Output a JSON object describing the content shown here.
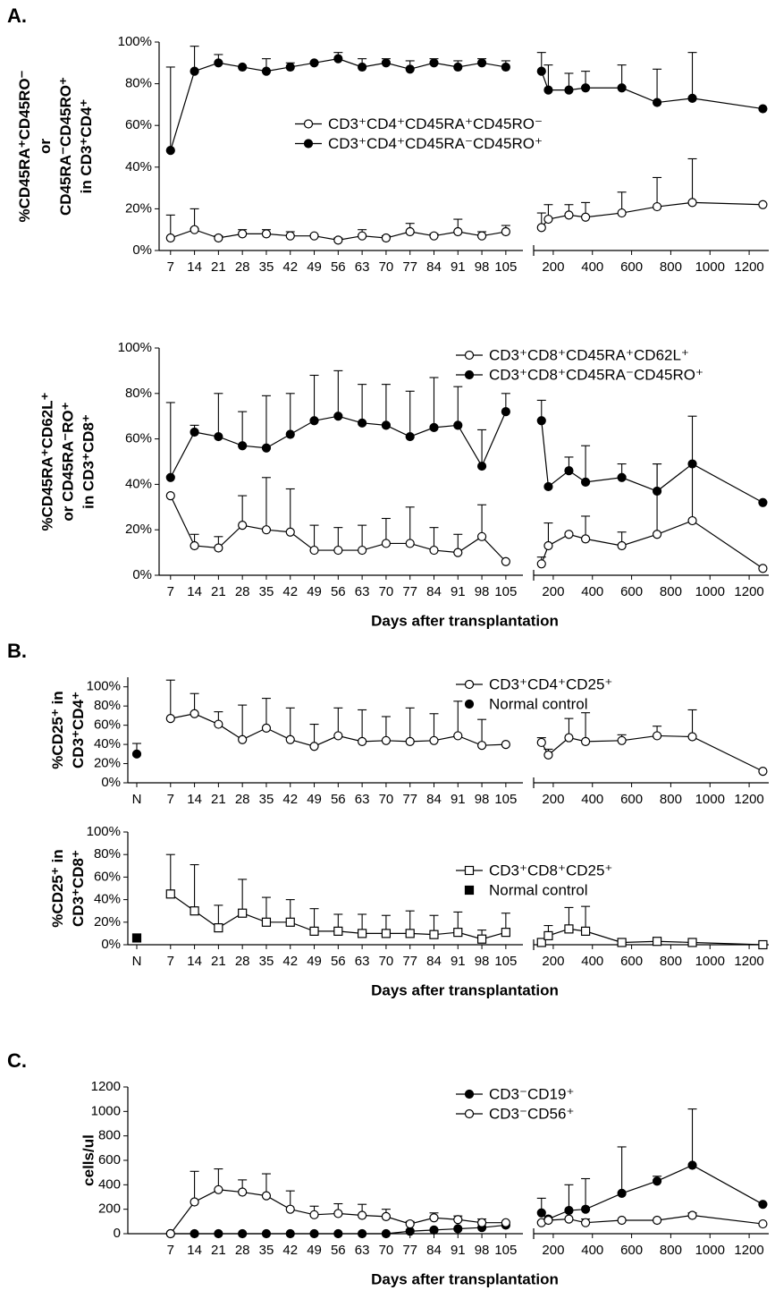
{
  "chart_data": [
    {
      "type": "line",
      "panel_label": "A.",
      "color": "#000000",
      "ylabel": [
        "%CD45RA⁺CD45RO⁻",
        "or",
        "CD45RA⁻CD45RO⁺",
        "in CD3⁺CD4⁺"
      ],
      "legend": "center",
      "x": [
        7,
        14,
        21,
        28,
        35,
        42,
        49,
        56,
        63,
        70,
        77,
        84,
        91,
        98,
        105
      ],
      "xlim": [
        0,
        110
      ],
      "xticks": [
        7,
        14,
        21,
        28,
        35,
        42,
        49,
        56,
        63,
        70,
        77,
        84,
        91,
        98,
        105
      ],
      "x2": [
        140,
        175,
        280,
        365,
        550,
        730,
        910,
        1270
      ],
      "x2lim": [
        100,
        1300
      ],
      "x2ticks": [
        200,
        400,
        600,
        800,
        1000,
        1200
      ],
      "ylim": [
        0,
        100
      ],
      "yticks": [
        {
          "value": 0,
          "label": "0%"
        },
        {
          "value": 20,
          "label": "20%"
        },
        {
          "value": 40,
          "label": "40%"
        },
        {
          "value": 60,
          "label": "60%"
        },
        {
          "value": 80,
          "label": "80%"
        },
        {
          "value": 100,
          "label": "100%"
        }
      ],
      "series": [
        {
          "name": "CD3⁺CD4⁺CD45RA⁺CD45RO⁻",
          "marker": "open-circle",
          "values": [
            6,
            10,
            6,
            8,
            8,
            7,
            7,
            5,
            7,
            6,
            9,
            7,
            9,
            7,
            9
          ],
          "errors": [
            11,
            10,
            1,
            2,
            2,
            2,
            0,
            1,
            3,
            1,
            4,
            1,
            6,
            2,
            3
          ],
          "values2": [
            11,
            15,
            17,
            16,
            18,
            21,
            23,
            22
          ],
          "errors2": [
            7,
            7,
            5,
            7,
            10,
            14,
            21,
            null
          ]
        },
        {
          "name": "CD3⁺CD4⁺CD45RA⁻CD45RO⁺",
          "marker": "filled-circle",
          "values": [
            48,
            86,
            90,
            88,
            86,
            88,
            90,
            92,
            88,
            90,
            87,
            90,
            88,
            90,
            88
          ],
          "errors": [
            40,
            12,
            4,
            0,
            6,
            2,
            0,
            3,
            4,
            2,
            4,
            2,
            3,
            2,
            3
          ],
          "values2": [
            86,
            77,
            77,
            78,
            78,
            71,
            73,
            68
          ],
          "errors2": [
            9,
            12,
            8,
            8,
            11,
            16,
            22,
            null
          ]
        }
      ]
    },
    {
      "type": "line",
      "color": "#000000",
      "ylabel": [
        "%CD45RA⁺CD62L⁺",
        "or CD45RA⁻RO⁺",
        "in CD3⁺CD8⁺"
      ],
      "xlabel": "Days after transplantation",
      "legend": "upper right",
      "x": [
        7,
        14,
        21,
        28,
        35,
        42,
        49,
        56,
        63,
        70,
        77,
        84,
        91,
        98,
        105
      ],
      "xlim": [
        0,
        110
      ],
      "xticks": [
        7,
        14,
        21,
        28,
        35,
        42,
        49,
        56,
        63,
        70,
        77,
        84,
        91,
        98,
        105
      ],
      "x2": [
        140,
        175,
        280,
        365,
        550,
        730,
        910,
        1270
      ],
      "x2lim": [
        100,
        1300
      ],
      "x2ticks": [
        200,
        400,
        600,
        800,
        1000,
        1200
      ],
      "ylim": [
        0,
        100
      ],
      "yticks": [
        {
          "value": 0,
          "label": "0%"
        },
        {
          "value": 20,
          "label": "20%"
        },
        {
          "value": 40,
          "label": "40%"
        },
        {
          "value": 60,
          "label": "60%"
        },
        {
          "value": 80,
          "label": "80%"
        },
        {
          "value": 100,
          "label": "100%"
        }
      ],
      "series": [
        {
          "name": "CD3⁺CD8⁺CD45RA⁺CD62L⁺",
          "marker": "open-circle",
          "values": [
            35,
            13,
            12,
            22,
            20,
            19,
            11,
            11,
            11,
            14,
            14,
            11,
            10,
            17,
            6
          ],
          "errors": [
            null,
            5,
            5,
            13,
            23,
            19,
            11,
            10,
            11,
            11,
            16,
            10,
            8,
            14,
            null
          ],
          "values2": [
            5,
            13,
            18,
            16,
            13,
            18,
            24,
            3
          ],
          "errors2": [
            3,
            10,
            null,
            10,
            6,
            31,
            25,
            null
          ]
        },
        {
          "name": "CD3⁺CD8⁺CD45RA⁻CD45RO⁺",
          "marker": "filled-circle",
          "values": [
            43,
            63,
            61,
            57,
            56,
            62,
            68,
            70,
            67,
            66,
            61,
            65,
            66,
            48,
            72
          ],
          "errors": [
            33,
            3,
            19,
            15,
            23,
            18,
            20,
            20,
            17,
            18,
            20,
            22,
            17,
            16,
            8
          ],
          "values2": [
            68,
            39,
            46,
            41,
            43,
            37,
            49,
            32
          ],
          "errors2": [
            9,
            null,
            6,
            16,
            6,
            12,
            21,
            null
          ]
        }
      ]
    },
    {
      "type": "line",
      "panel_label": "B.",
      "color": "#000000",
      "ylabel": [
        "%CD25⁺ in",
        "CD3⁺CD4⁺"
      ],
      "legend": "upper right",
      "x": [
        7,
        14,
        21,
        28,
        35,
        42,
        49,
        56,
        63,
        70,
        77,
        84,
        91,
        98,
        105
      ],
      "xlim": [
        0,
        110
      ],
      "xticks": [
        7,
        14,
        21,
        28,
        35,
        42,
        49,
        56,
        63,
        70,
        77,
        84,
        91,
        98,
        105
      ],
      "x2": [
        140,
        175,
        280,
        365,
        550,
        730,
        910,
        1270
      ],
      "x2lim": [
        100,
        1300
      ],
      "x2ticks": [
        200,
        400,
        600,
        800,
        1000,
        1200
      ],
      "ylim": [
        0,
        110
      ],
      "yticks": [
        {
          "value": 0,
          "label": "0%"
        },
        {
          "value": 20,
          "label": "20%"
        },
        {
          "value": 40,
          "label": "40%"
        },
        {
          "value": 60,
          "label": "60%"
        },
        {
          "value": 80,
          "label": "80%"
        },
        {
          "value": 100,
          "label": "100%"
        }
      ],
      "series": [
        {
          "name": "CD3⁺CD4⁺CD25⁺",
          "marker": "open-circle",
          "values": [
            67,
            72,
            61,
            45,
            57,
            45,
            38,
            49,
            43,
            44,
            43,
            44,
            49,
            39,
            40
          ],
          "errors": [
            40,
            21,
            13,
            36,
            31,
            33,
            23,
            29,
            33,
            25,
            35,
            28,
            36,
            27,
            null
          ],
          "values2": [
            42,
            29,
            47,
            43,
            44,
            49,
            48,
            12
          ],
          "errors2": [
            5,
            6,
            20,
            30,
            6,
            10,
            28,
            null
          ]
        }
      ],
      "control": {
        "name": "Normal control",
        "category": "N",
        "marker": "filled-circle",
        "value": 30,
        "error": 11
      }
    },
    {
      "type": "line",
      "color": "#000000",
      "ylabel": [
        "%CD25⁺ in",
        "CD3⁺CD8⁺"
      ],
      "xlabel": "Days after transplantation",
      "legend": "center right",
      "x": [
        7,
        14,
        21,
        28,
        35,
        42,
        49,
        56,
        63,
        70,
        77,
        84,
        91,
        98,
        105
      ],
      "xlim": [
        0,
        110
      ],
      "xticks": [
        7,
        14,
        21,
        28,
        35,
        42,
        49,
        56,
        63,
        70,
        77,
        84,
        91,
        98,
        105
      ],
      "x2": [
        140,
        175,
        280,
        365,
        550,
        730,
        910,
        1270
      ],
      "x2lim": [
        100,
        1300
      ],
      "x2ticks": [
        200,
        400,
        600,
        800,
        1000,
        1200
      ],
      "ylim": [
        0,
        100
      ],
      "yticks": [
        {
          "value": 0,
          "label": "0%"
        },
        {
          "value": 20,
          "label": "20%"
        },
        {
          "value": 40,
          "label": "40%"
        },
        {
          "value": 60,
          "label": "60%"
        },
        {
          "value": 80,
          "label": "80%"
        },
        {
          "value": 100,
          "label": "100%"
        }
      ],
      "series": [
        {
          "name": "CD3⁺CD8⁺CD25⁺",
          "marker": "open-square",
          "values": [
            45,
            30,
            15,
            28,
            20,
            20,
            12,
            12,
            10,
            10,
            10,
            9,
            11,
            5,
            11
          ],
          "errors": [
            35,
            41,
            20,
            30,
            22,
            20,
            20,
            15,
            17,
            16,
            20,
            17,
            18,
            8,
            17
          ],
          "values2": [
            2,
            8,
            14,
            12,
            2,
            3,
            2,
            0
          ],
          "errors2": [
            3,
            9,
            19,
            22,
            null,
            2,
            null,
            null
          ]
        }
      ],
      "control": {
        "name": "Normal control",
        "category": "N",
        "marker": "filled-square",
        "value": 6,
        "error": 2
      }
    },
    {
      "type": "line",
      "panel_label": "C.",
      "color": "#000000",
      "ylabel": [
        "cells/ul"
      ],
      "xlabel": "Days after transplantation",
      "legend": "upper right",
      "x": [
        7,
        14,
        21,
        28,
        35,
        42,
        49,
        56,
        63,
        70,
        77,
        84,
        91,
        98,
        105
      ],
      "xlim": [
        0,
        110
      ],
      "xticks": [
        7,
        14,
        21,
        28,
        35,
        42,
        49,
        56,
        63,
        70,
        77,
        84,
        91,
        98,
        105
      ],
      "x2": [
        140,
        175,
        280,
        365,
        550,
        730,
        910,
        1270
      ],
      "x2lim": [
        100,
        1300
      ],
      "x2ticks": [
        200,
        400,
        600,
        800,
        1000,
        1200
      ],
      "ylim": [
        0,
        1200
      ],
      "yticks": [
        0,
        200,
        400,
        600,
        800,
        1000,
        1200
      ],
      "series": [
        {
          "name": "CD3⁻CD19⁺",
          "marker": "filled-circle",
          "values": [
            0,
            0,
            0,
            0,
            0,
            0,
            0,
            0,
            0,
            0,
            20,
            30,
            40,
            50,
            70
          ],
          "errors": [
            null,
            null,
            null,
            null,
            null,
            null,
            null,
            null,
            null,
            null,
            null,
            null,
            null,
            null,
            null
          ],
          "values2": [
            170,
            120,
            190,
            200,
            330,
            430,
            560,
            240
          ],
          "errors2": [
            120,
            null,
            210,
            250,
            380,
            40,
            460,
            null
          ]
        },
        {
          "name": "CD3⁻CD56⁺",
          "marker": "open-circle",
          "values": [
            0,
            260,
            360,
            340,
            310,
            200,
            155,
            165,
            150,
            140,
            80,
            130,
            115,
            90,
            90
          ],
          "errors": [
            null,
            250,
            170,
            100,
            180,
            150,
            70,
            80,
            90,
            60,
            20,
            40,
            30,
            30,
            null
          ],
          "values2": [
            90,
            110,
            120,
            90,
            110,
            110,
            150,
            80
          ],
          "errors2": [
            null,
            null,
            null,
            30,
            null,
            null,
            20,
            null
          ]
        }
      ]
    }
  ]
}
